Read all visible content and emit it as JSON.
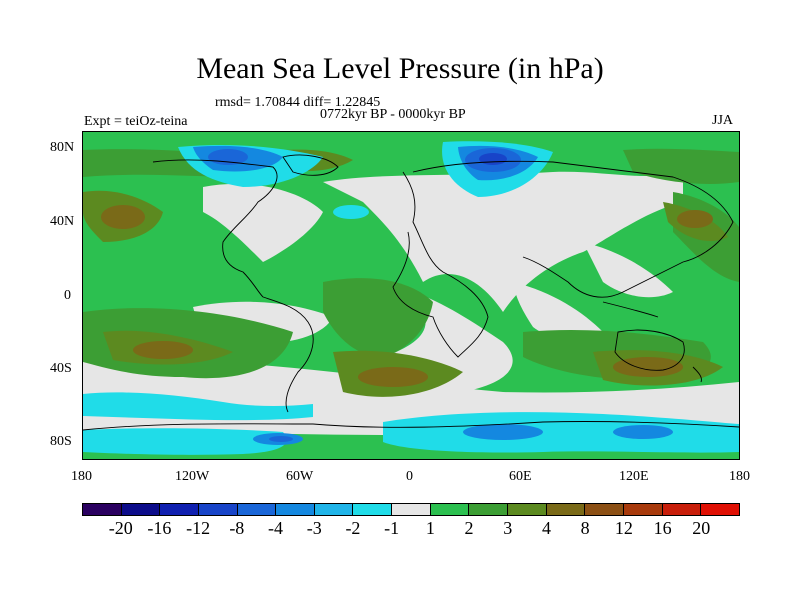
{
  "title": "Mean Sea Level Pressure (in hPa)",
  "stats": "rmsd= 1.70844 diff= 1.22845",
  "period": "0772kyr BP - 0000kyr BP",
  "experiment": "Expt = teiOz-teina",
  "season": "JJA",
  "lat_labels": [
    "80N",
    "40N",
    "0",
    "40S",
    "80S"
  ],
  "lon_labels": [
    "180",
    "120W",
    "60W",
    "0",
    "60E",
    "120E",
    "180"
  ],
  "colorbar": {
    "colors": [
      "#2a0060",
      "#0c0c8a",
      "#1020b0",
      "#1844c8",
      "#1a66d8",
      "#1488e0",
      "#20b4e8",
      "#20dce8",
      "#e6e6e6",
      "#2cc050",
      "#3c9e34",
      "#5c8a20",
      "#7a6a18",
      "#8c5014",
      "#a83a0c",
      "#c81e0a",
      "#e01004"
    ],
    "labels": [
      "-20",
      "-16",
      "-12",
      "-8",
      "-4",
      "-3",
      "-2",
      "-1",
      "1",
      "2",
      "3",
      "4",
      "8",
      "12",
      "16",
      "20"
    ]
  },
  "map_layers": {
    "background": "#2cc050",
    "neutral": "#e6e6e6",
    "dark_green": "#3c9e34",
    "olive": "#5c8a20",
    "brown": "#7a6a18",
    "cyan": "#20dce8",
    "light_blue": "#1488e0",
    "blue": "#1a66d8",
    "dark_blue": "#1844c8"
  }
}
